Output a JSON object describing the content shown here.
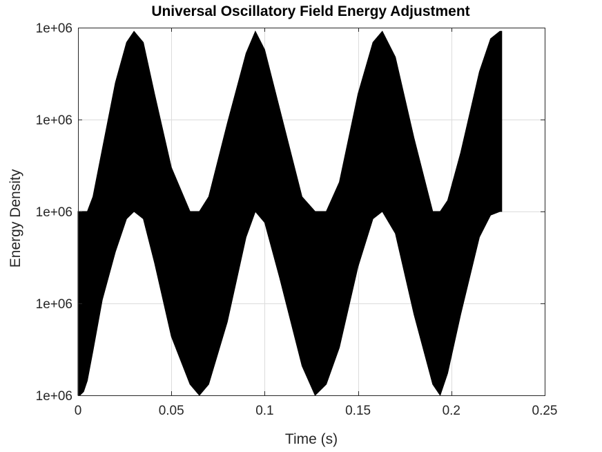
{
  "chart_data": {
    "type": "area",
    "title": "Universal Oscillatory Field Energy Adjustment",
    "xlabel": "Time (s)",
    "ylabel": "Energy Density",
    "xlim": [
      0,
      0.25
    ],
    "ylim": [
      0,
      1
    ],
    "x_ticks": [
      {
        "value": 0,
        "label": "0"
      },
      {
        "value": 0.05,
        "label": "0.05"
      },
      {
        "value": 0.1,
        "label": "0.1"
      },
      {
        "value": 0.15,
        "label": "0.15"
      },
      {
        "value": 0.2,
        "label": "0.2"
      },
      {
        "value": 0.25,
        "label": "0.25"
      }
    ],
    "y_ticks": [
      {
        "value": 0,
        "label": "1e+06"
      },
      {
        "value": 0.25,
        "label": "1e+06"
      },
      {
        "value": 0.5,
        "label": "1e+06"
      },
      {
        "value": 0.75,
        "label": "1e+06"
      },
      {
        "value": 1,
        "label": "1e+06"
      }
    ],
    "grid": true,
    "legend": "none",
    "color": "#000000",
    "series": [
      {
        "x": [
          0.0,
          0.001,
          0.003,
          0.005,
          0.008,
          0.013,
          0.02,
          0.026,
          0.03,
          0.035,
          0.041,
          0.05,
          0.06,
          0.065,
          0.07,
          0.08,
          0.09,
          0.095,
          0.1,
          0.108,
          0.12,
          0.127,
          0.133,
          0.14,
          0.15,
          0.158,
          0.163,
          0.17,
          0.18,
          0.19,
          0.194,
          0.198,
          0.205,
          0.215,
          0.221,
          0.226,
          0.227
        ],
        "upper": [
          0.5,
          0.5,
          0.5,
          0.5,
          0.54,
          0.67,
          0.85,
          0.96,
          0.99,
          0.96,
          0.82,
          0.62,
          0.5,
          0.5,
          0.54,
          0.74,
          0.93,
          0.99,
          0.94,
          0.78,
          0.54,
          0.5,
          0.5,
          0.58,
          0.82,
          0.96,
          0.99,
          0.92,
          0.7,
          0.5,
          0.5,
          0.53,
          0.66,
          0.88,
          0.97,
          0.99,
          0.99
        ],
        "lower": [
          0.0,
          0.0,
          0.01,
          0.04,
          0.12,
          0.26,
          0.39,
          0.48,
          0.5,
          0.48,
          0.36,
          0.16,
          0.03,
          0.0,
          0.03,
          0.2,
          0.43,
          0.5,
          0.47,
          0.32,
          0.08,
          0.0,
          0.03,
          0.13,
          0.35,
          0.48,
          0.5,
          0.44,
          0.22,
          0.03,
          0.0,
          0.06,
          0.22,
          0.43,
          0.49,
          0.5,
          0.5
        ]
      }
    ]
  }
}
